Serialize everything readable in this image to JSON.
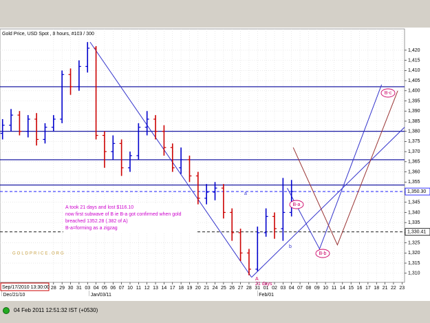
{
  "chart_data": {
    "type": "ohlc",
    "title": "Gold Price, USD Spot , 8 hours, #103 / 300",
    "cursor_time": "Sep/17/2010 13:30:00",
    "status_time": "04 Feb 2011 12:51:32 IST (+0530)",
    "watermark": "GOLDPRICE.ORG",
    "up_color": "#0000cc",
    "down_color": "#cc0000",
    "grid": true,
    "xlim": [
      -6.3,
      41.3
    ],
    "ylim": [
      1305.5,
      1430.5
    ],
    "x": [
      -6,
      -5,
      -4,
      -3,
      -2,
      -1,
      0,
      1,
      2,
      3,
      4,
      5,
      6,
      7,
      8,
      9,
      10,
      11,
      12,
      13,
      14,
      15,
      16,
      17,
      18,
      19,
      20,
      21,
      22,
      23,
      24,
      25,
      26,
      27,
      28
    ],
    "open": [
      1379,
      1383,
      1388,
      1380,
      1386,
      1376,
      1382,
      1386,
      1408,
      1402,
      1412,
      1421,
      1378,
      1370,
      1374,
      1362,
      1368,
      1382,
      1386,
      1380,
      1372,
      1362,
      1366,
      1358,
      1347,
      1350,
      1352,
      1340,
      1330,
      1320,
      1312,
      1330,
      1338,
      1332,
      1340
    ],
    "high": [
      1386,
      1391,
      1390,
      1388,
      1389,
      1384,
      1388,
      1410,
      1411,
      1415,
      1424,
      1422,
      1380,
      1378,
      1376,
      1370,
      1384,
      1390,
      1388,
      1383,
      1374,
      1372,
      1368,
      1360,
      1354,
      1355,
      1354,
      1342,
      1332,
      1322,
      1333,
      1342,
      1340,
      1357,
      1356
    ],
    "low": [
      1376,
      1380,
      1378,
      1377,
      1373,
      1374,
      1380,
      1384,
      1398,
      1400,
      1409,
      1376,
      1362,
      1366,
      1358,
      1360,
      1366,
      1378,
      1376,
      1368,
      1360,
      1359,
      1355,
      1344,
      1344,
      1346,
      1337,
      1326,
      1316,
      1309,
      1311,
      1328,
      1327,
      1326,
      1338
    ],
    "close": [
      1383,
      1388,
      1380,
      1386,
      1376,
      1382,
      1386,
      1408,
      1402,
      1412,
      1421,
      1378,
      1370,
      1374,
      1362,
      1368,
      1382,
      1386,
      1380,
      1372,
      1362,
      1366,
      1358,
      1347,
      1350,
      1352,
      1340,
      1330,
      1320,
      1312,
      1330,
      1338,
      1332,
      1340,
      1350.3
    ],
    "yticks": [
      {
        "value": 1310,
        "label": "1,310"
      },
      {
        "value": 1315,
        "label": "1,315"
      },
      {
        "value": 1320,
        "label": "1,320"
      },
      {
        "value": 1325,
        "label": "1,325"
      },
      {
        "value": 1330,
        "label": "1,330"
      },
      {
        "value": 1335,
        "label": "1,335"
      },
      {
        "value": 1340,
        "label": "1,340"
      },
      {
        "value": 1345,
        "label": "1,345"
      },
      {
        "value": 1350,
        "label": "1,350"
      },
      {
        "value": 1355,
        "label": "1,355"
      },
      {
        "value": 1360,
        "label": "1,360"
      },
      {
        "value": 1365,
        "label": "1,365"
      },
      {
        "value": 1370,
        "label": "1,370"
      },
      {
        "value": 1375,
        "label": "1,375"
      },
      {
        "value": 1380,
        "label": "1,380"
      },
      {
        "value": 1385,
        "label": "1,385"
      },
      {
        "value": 1390,
        "label": "1,390"
      },
      {
        "value": 1395,
        "label": "1,395"
      },
      {
        "value": 1400,
        "label": "1,400"
      },
      {
        "value": 1405,
        "label": "1,405"
      },
      {
        "value": 1410,
        "label": "1,410"
      },
      {
        "value": 1415,
        "label": "1,415"
      },
      {
        "value": 1420,
        "label": "1,420"
      }
    ],
    "xticks": [
      {
        "value": 0,
        "label": "28"
      },
      {
        "value": 1,
        "label": "29"
      },
      {
        "value": 2,
        "label": "30"
      },
      {
        "value": 3,
        "label": "31"
      },
      {
        "value": 4,
        "label": "03"
      },
      {
        "value": 5,
        "label": "04"
      },
      {
        "value": 6,
        "label": "05"
      },
      {
        "value": 7,
        "label": "06"
      },
      {
        "value": 8,
        "label": "07"
      },
      {
        "value": 9,
        "label": "10"
      },
      {
        "value": 10,
        "label": "11"
      },
      {
        "value": 11,
        "label": "12"
      },
      {
        "value": 12,
        "label": "13"
      },
      {
        "value": 13,
        "label": "14"
      },
      {
        "value": 14,
        "label": "17"
      },
      {
        "value": 15,
        "label": "18"
      },
      {
        "value": 16,
        "label": "19"
      },
      {
        "value": 17,
        "label": "20"
      },
      {
        "value": 18,
        "label": "21"
      },
      {
        "value": 19,
        "label": "24"
      },
      {
        "value": 20,
        "label": "25"
      },
      {
        "value": 21,
        "label": "26"
      },
      {
        "value": 22,
        "label": "27"
      },
      {
        "value": 23,
        "label": "28"
      },
      {
        "value": 24,
        "label": "31"
      },
      {
        "value": 25,
        "label": "01"
      },
      {
        "value": 26,
        "label": "02"
      },
      {
        "value": 27,
        "label": "03"
      },
      {
        "value": 28,
        "label": "04"
      },
      {
        "value": 29,
        "label": "07"
      },
      {
        "value": 30,
        "label": "08"
      },
      {
        "value": 31,
        "label": "09"
      },
      {
        "value": 32,
        "label": "10"
      },
      {
        "value": 33,
        "label": "11"
      },
      {
        "value": 34,
        "label": "14"
      },
      {
        "value": 35,
        "label": "15"
      },
      {
        "value": 36,
        "label": "16"
      },
      {
        "value": 37,
        "label": "17"
      },
      {
        "value": 38,
        "label": "18"
      },
      {
        "value": 39,
        "label": "21"
      },
      {
        "value": 40,
        "label": "22"
      },
      {
        "value": 41,
        "label": "23"
      }
    ],
    "period_labels": [
      {
        "value": -6.1,
        "label": "Dec/21/10"
      },
      {
        "value": 4.2,
        "label": "Jan/03/11"
      },
      {
        "value": 24,
        "label": "Feb/01"
      }
    ],
    "hlines": [
      {
        "value": 1402,
        "color": "#000099",
        "dashed": false
      },
      {
        "value": 1380,
        "color": "#000099",
        "dashed": false
      },
      {
        "value": 1366,
        "color": "#000099",
        "dashed": false
      },
      {
        "value": 1353.5,
        "color": "#000099",
        "dashed": false
      },
      {
        "value": 1350.3,
        "color": "#0000ff",
        "dashed": true,
        "label": "1,350.30"
      },
      {
        "value": 1330.41,
        "color": "#000000",
        "dashed": true,
        "label": "1,330.41"
      }
    ],
    "trendlines": [
      {
        "color": "#3333cc",
        "x": [
          4.3,
          23.3
        ],
        "y": [
          1424,
          1308
        ]
      },
      {
        "color": "#3333cc",
        "x": [
          23.3,
          41.3
        ],
        "y": [
          1308,
          1382
        ]
      },
      {
        "color": "#3333cc",
        "x": [
          27.5,
          31.3,
          38.6
        ],
        "y": [
          1352,
          1322,
          1403
        ]
      },
      {
        "color": "#993333",
        "x": [
          28.2,
          33.4,
          40.5
        ],
        "y": [
          1372,
          1324,
          1400
        ]
      }
    ],
    "note": [
      "A took 21 days and lost $116.10",
      "now first subwave of B ie B-a got confirmed when gold",
      "breached 1352.28 (.382 of A)",
      "B-a=forming as a zigzag"
    ],
    "wave_labels": [
      "a",
      "b",
      "A",
      "21 days"
    ],
    "wave_circles": [
      "B-a",
      "B-b",
      "B-c"
    ]
  }
}
